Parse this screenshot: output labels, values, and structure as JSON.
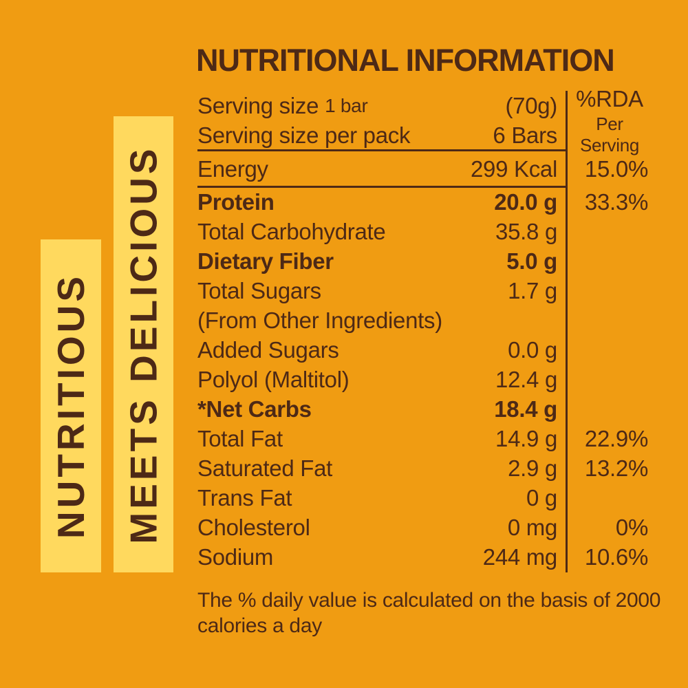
{
  "colors": {
    "bg": "#F09C12",
    "banner": "#FFD95E",
    "ink": "#4D2916"
  },
  "banners": [
    {
      "label": "NUTRITIOUS"
    },
    {
      "label": "MEETS DELICIOUS"
    }
  ],
  "table": {
    "title": "NUTRITIONAL INFORMATION",
    "header": {
      "row1": {
        "label": "Serving size",
        "label_small": "1 bar",
        "value": "(70g)"
      },
      "row2": {
        "label": "Serving size per pack",
        "value": "6 Bars"
      },
      "rda_line1": "%RDA",
      "rda_line2": "Per Serving"
    },
    "rows": [
      {
        "label": "Energy",
        "value": "299 Kcal",
        "rda": "15.0%",
        "bold": false
      },
      {
        "label": "Protein",
        "value": "20.0 g",
        "rda": "33.3%",
        "bold": true
      },
      {
        "label": "Total Carbohydrate",
        "value": "35.8 g",
        "rda": "",
        "bold": false
      },
      {
        "label": "Dietary Fiber",
        "value": "5.0 g",
        "rda": "",
        "bold": true
      },
      {
        "label": "Total Sugars",
        "value": "1.7 g",
        "rda": "",
        "bold": false
      },
      {
        "label": "(From Other Ingredients)",
        "value": "",
        "rda": "",
        "bold": false
      },
      {
        "label": "Added Sugars",
        "value": "0.0 g",
        "rda": "",
        "bold": false
      },
      {
        "label": "Polyol (Maltitol)",
        "value": "12.4 g",
        "rda": "",
        "bold": false
      },
      {
        "label": "*Net Carbs",
        "value": "18.4 g",
        "rda": "",
        "bold": true
      },
      {
        "label": "Total Fat",
        "value": "14.9 g",
        "rda": "22.9%",
        "bold": false
      },
      {
        "label": "Saturated Fat",
        "value": "2.9 g",
        "rda": "13.2%",
        "bold": false
      },
      {
        "label": "Trans Fat",
        "value": "0 g",
        "rda": "",
        "bold": false
      },
      {
        "label": "Cholesterol",
        "value": "0 mg",
        "rda": "0%",
        "bold": false
      },
      {
        "label": "Sodium",
        "value": "244 mg",
        "rda": "10.6%",
        "bold": false
      }
    ],
    "footnote_line1": "The % daily value is calculated on the basis of 2000",
    "footnote_line2": "calories a day"
  }
}
